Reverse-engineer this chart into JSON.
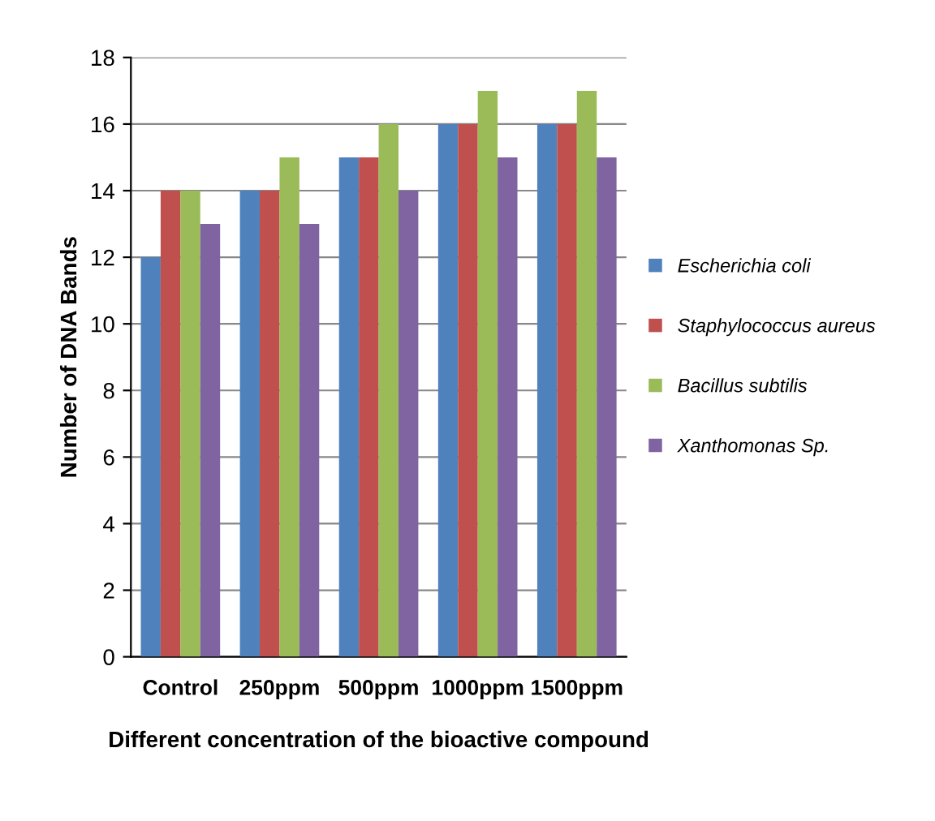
{
  "chart_data": {
    "type": "bar",
    "categories": [
      "Control",
      "250ppm",
      "500ppm",
      "1000ppm",
      "1500ppm"
    ],
    "series": [
      {
        "name": "Escherichia coli",
        "color": "#4f81bd",
        "values": [
          12,
          14,
          15,
          16,
          16
        ]
      },
      {
        "name": "Staphylococcus aureus",
        "color": "#c0504d",
        "values": [
          14,
          14,
          15,
          16,
          16
        ]
      },
      {
        "name": "Bacillus subtilis",
        "color": "#9bbb59",
        "values": [
          14,
          15,
          16,
          17,
          17
        ]
      },
      {
        "name": "Xanthomonas Sp.",
        "color": "#8064a2",
        "values": [
          13,
          13,
          14,
          15,
          15
        ]
      }
    ],
    "xlabel": "Different concentration of the bioactive compound",
    "ylabel": "Number of DNA Bands",
    "ylim": [
      0,
      18
    ],
    "yticks": [
      0,
      2,
      4,
      6,
      8,
      10,
      12,
      14,
      16,
      18
    ],
    "grid": "y",
    "legend": "right"
  }
}
